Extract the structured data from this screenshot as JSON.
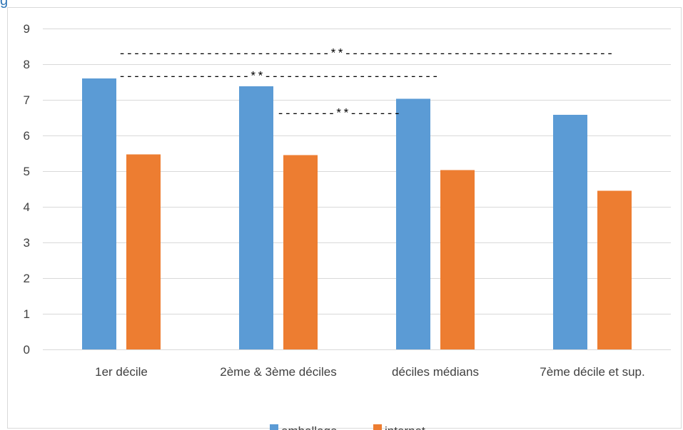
{
  "header_fragment": "g",
  "chart_data": {
    "type": "bar",
    "categories": [
      "1er décile",
      "2ème & 3ème déciles",
      "déciles médians",
      "7ème décile et sup."
    ],
    "series": [
      {
        "name": "emballage",
        "color": "#5b9bd5",
        "values": [
          7.6,
          7.38,
          7.03,
          6.58
        ]
      },
      {
        "name": "internet",
        "color": "#ed7d31",
        "values": [
          5.47,
          5.45,
          5.03,
          4.45
        ]
      }
    ],
    "ylim": [
      0,
      9
    ],
    "yticks": [
      "0",
      "1",
      "2",
      "3",
      "4",
      "5",
      "6",
      "7",
      "8",
      "9"
    ],
    "grid": true,
    "legend": "bottom",
    "annotations": [
      {
        "text": "-----------------------------**-------------------------------------"
      },
      {
        "text": "------------------**------------------------"
      },
      {
        "text": "--------**-------"
      }
    ]
  }
}
